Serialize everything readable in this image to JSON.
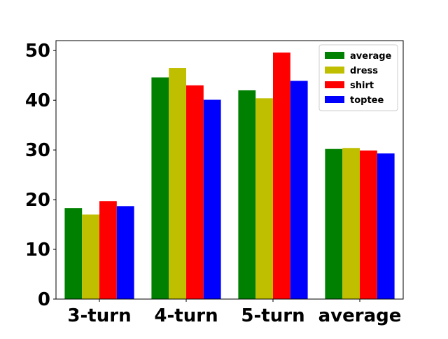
{
  "chart_data": {
    "type": "bar",
    "categories": [
      "3-turn",
      "4-turn",
      "5-turn",
      "average"
    ],
    "series": [
      {
        "name": "average",
        "color": "#008000",
        "values": [
          18.3,
          44.6,
          42.0,
          30.2
        ]
      },
      {
        "name": "dress",
        "color": "#bfbf00",
        "values": [
          17.0,
          46.5,
          40.4,
          30.4
        ]
      },
      {
        "name": "shirt",
        "color": "#ff0000",
        "values": [
          19.7,
          43.0,
          49.6,
          29.9
        ]
      },
      {
        "name": "toptee",
        "color": "#0000ff",
        "values": [
          18.7,
          40.1,
          43.9,
          29.3
        ]
      }
    ],
    "ylim": [
      0,
      52
    ],
    "yticks": [
      0,
      10,
      20,
      30,
      40,
      50
    ],
    "title": "",
    "xlabel": "",
    "ylabel": "",
    "legend_position": "top-right",
    "grid": false
  }
}
